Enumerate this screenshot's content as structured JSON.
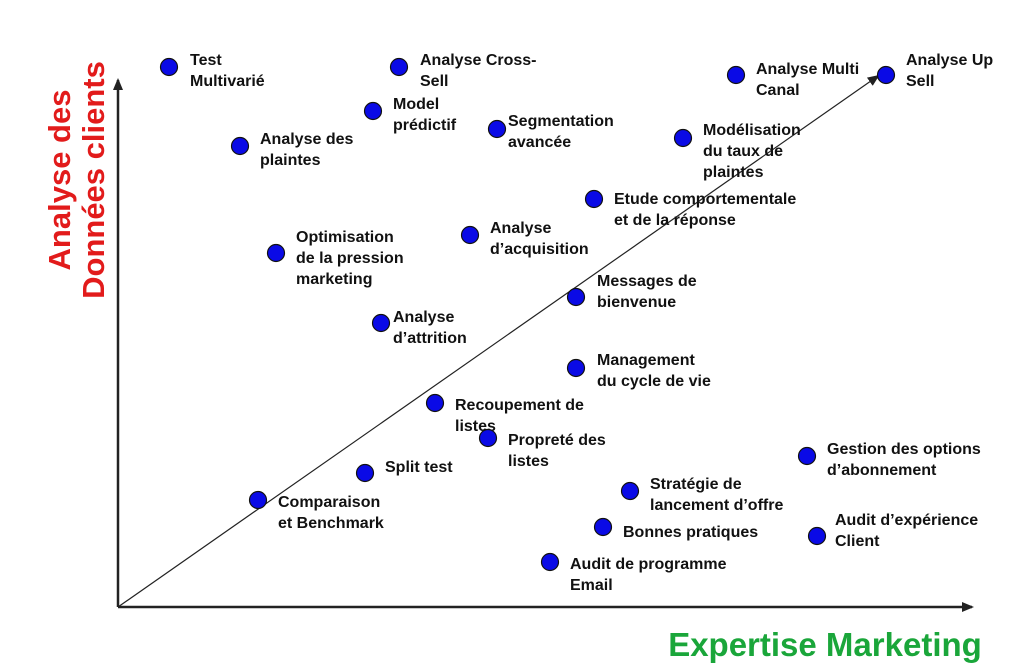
{
  "axes": {
    "y_title": [
      "Analyse des",
      "Données clients"
    ],
    "x_title": "Expertise Marketing"
  },
  "nodes": [
    {
      "lines": [
        "Test",
        "Multivarié"
      ]
    },
    {
      "lines": [
        "Analyse Cross-",
        "Sell"
      ]
    },
    {
      "lines": [
        "Model",
        "prédictif"
      ]
    },
    {
      "lines": [
        "Segmentation",
        "avancée"
      ]
    },
    {
      "lines": [
        "Analyse des",
        "plaintes"
      ]
    },
    {
      "lines": [
        "Analyse Multi",
        "Canal"
      ]
    },
    {
      "lines": [
        "Analyse Up",
        "Sell"
      ]
    },
    {
      "lines": [
        "Modélisation",
        "du taux de",
        "plaintes"
      ]
    },
    {
      "lines": [
        "Etude comportementale",
        "et de la réponse"
      ]
    },
    {
      "lines": [
        "Analyse",
        "d’acquisition"
      ]
    },
    {
      "lines": [
        "Optimisation",
        "de la pression",
        "marketing"
      ]
    },
    {
      "lines": [
        "Messages de",
        "bienvenue"
      ]
    },
    {
      "lines": [
        "Analyse",
        "d’attrition"
      ]
    },
    {
      "lines": [
        "Management",
        "du cycle de vie"
      ]
    },
    {
      "lines": [
        "Recoupement de",
        "listes"
      ]
    },
    {
      "lines": [
        "Propreté des",
        "listes"
      ]
    },
    {
      "lines": [
        "Split test"
      ]
    },
    {
      "lines": [
        "Comparaison",
        "et Benchmark"
      ]
    },
    {
      "lines": [
        "Gestion des options",
        "d’abonnement"
      ]
    },
    {
      "lines": [
        "Stratégie de",
        "lancement d’offre"
      ]
    },
    {
      "lines": [
        "Bonnes pratiques"
      ]
    },
    {
      "lines": [
        "Audit d’expérience",
        "Client"
      ]
    },
    {
      "lines": [
        "Audit de programme",
        "Email"
      ]
    }
  ]
}
